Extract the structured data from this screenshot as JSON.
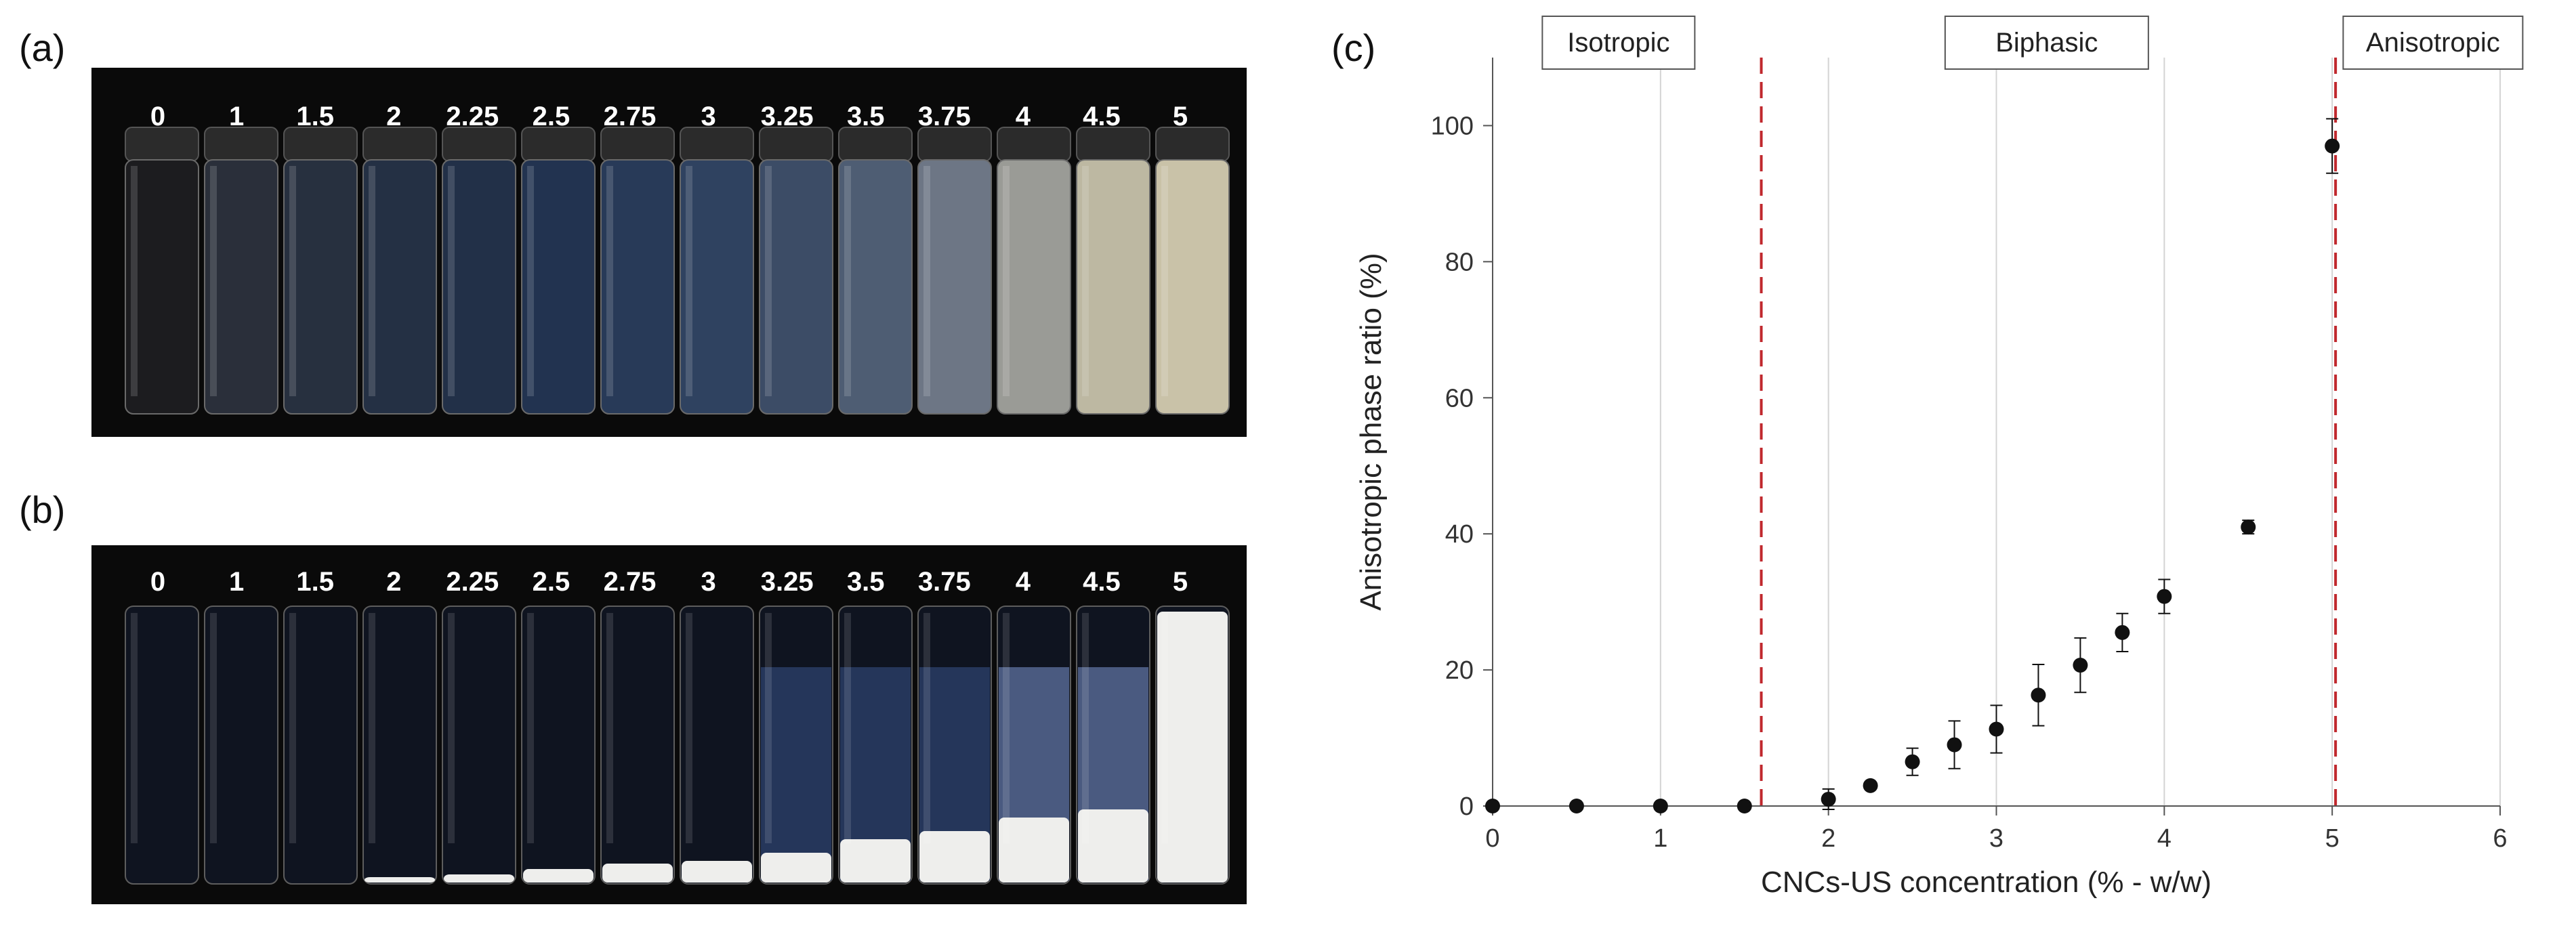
{
  "panels": {
    "a_label": "(a)",
    "b_label": "(b)",
    "c_label": "(c)"
  },
  "photo_a": {
    "concentrations": [
      "0",
      "1",
      "1.5",
      "2",
      "2.25",
      "2.5",
      "2.75",
      "3",
      "3.25",
      "3.5",
      "3.75",
      "4",
      "4.5",
      "5"
    ],
    "liquid_tint": [
      "#1c1c1f",
      "#2a2f3a",
      "#27303f",
      "#243044",
      "#223048",
      "#223350",
      "#283a58",
      "#2f4260",
      "#3c4c66",
      "#4e5d73",
      "#6d7685",
      "#9a9b96",
      "#bdb8a2",
      "#c9c2a8"
    ]
  },
  "photo_b": {
    "concentrations": [
      "0",
      "1",
      "1.5",
      "2",
      "2.25",
      "2.5",
      "2.75",
      "3",
      "3.25",
      "3.5",
      "3.75",
      "4",
      "4.5",
      "5"
    ],
    "white_phase_fraction": [
      0,
      0,
      0,
      0.02,
      0.03,
      0.05,
      0.07,
      0.08,
      0.11,
      0.16,
      0.19,
      0.24,
      0.27,
      1.0
    ]
  },
  "chart_data": {
    "type": "scatter",
    "title": "",
    "xlabel": "CNCs-US concentration (% - w/w)",
    "ylabel": "Anisotropic phase ratio (%)",
    "xlim": [
      0,
      6
    ],
    "ylim": [
      0,
      110
    ],
    "xticks": [
      0,
      1,
      2,
      3,
      4,
      5,
      6
    ],
    "yticks": [
      0,
      20,
      40,
      60,
      80,
      100
    ],
    "grid": "vertical",
    "regions": [
      {
        "label": "Isotropic",
        "x_center": 0.75
      },
      {
        "label": "Biphasic",
        "x_center": 3.3
      },
      {
        "label": "Anisotropic",
        "x_center": 5.6
      }
    ],
    "boundaries": [
      1.6,
      5.02
    ],
    "boundary_color": "#c0282d",
    "points": [
      {
        "x": 0,
        "y": 0,
        "err": 0
      },
      {
        "x": 0.5,
        "y": 0,
        "err": 0
      },
      {
        "x": 1,
        "y": 0,
        "err": 0
      },
      {
        "x": 1.5,
        "y": 0,
        "err": 0
      },
      {
        "x": 2,
        "y": 1.0,
        "err": 1.5
      },
      {
        "x": 2.25,
        "y": 3.0,
        "err": 0.5
      },
      {
        "x": 2.5,
        "y": 6.5,
        "err": 2.0
      },
      {
        "x": 2.75,
        "y": 9.0,
        "err": 3.5
      },
      {
        "x": 3,
        "y": 11.3,
        "err": 3.5
      },
      {
        "x": 3.25,
        "y": 16.3,
        "err": 4.5
      },
      {
        "x": 3.5,
        "y": 20.7,
        "err": 4.0
      },
      {
        "x": 3.75,
        "y": 25.5,
        "err": 2.8
      },
      {
        "x": 4,
        "y": 30.8,
        "err": 2.5
      },
      {
        "x": 4.5,
        "y": 41.0,
        "err": 1.0
      },
      {
        "x": 5,
        "y": 97.0,
        "err": 4.0
      }
    ]
  }
}
